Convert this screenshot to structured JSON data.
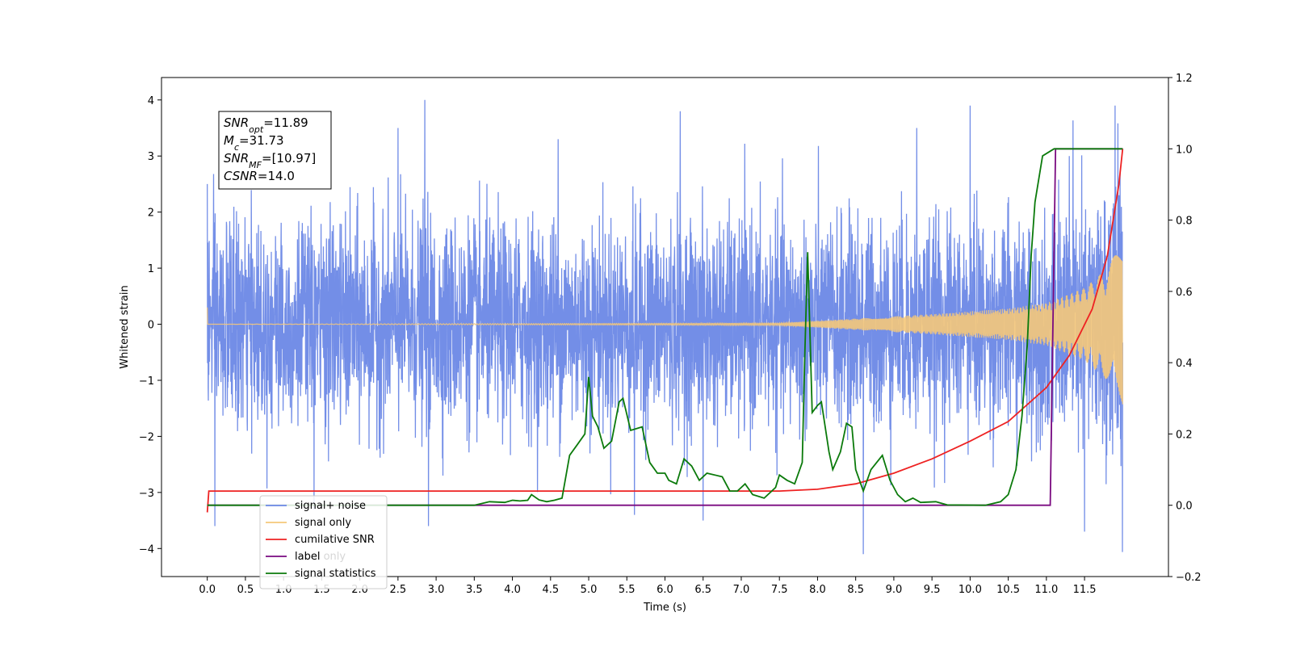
{
  "chart_data": {
    "type": "line",
    "xlabel": "Time (s)",
    "ylabel": "Whitened strain",
    "xlim": [
      -0.6,
      12.6
    ],
    "ylim": [
      -4.5,
      4.4
    ],
    "y2lim": [
      -0.2,
      1.2
    ],
    "x_ticks": [
      "0.0",
      "0.5",
      "1.0",
      "1.5",
      "2.0",
      "2.5",
      "3.0",
      "3.5",
      "4.0",
      "4.5",
      "5.0",
      "5.5",
      "6.0",
      "6.5",
      "7.0",
      "7.5",
      "8.0",
      "8.5",
      "9.0",
      "9.5",
      "10.0",
      "10.5",
      "11.0",
      "11.5"
    ],
    "y_ticks": [
      "−4",
      "−3",
      "−2",
      "−1",
      "0",
      "1",
      "2",
      "3",
      "4"
    ],
    "y2_ticks": [
      "−0.2",
      "0.0",
      "0.2",
      "0.4",
      "0.6",
      "0.8",
      "1.0",
      "1.2"
    ],
    "grid": false,
    "legend_position": "lower-left",
    "annotation": {
      "snr_opt": "=11.89",
      "mc": "=31.73",
      "snr_mf": "=[10.97]",
      "csnr": "=14.0"
    },
    "series": [
      {
        "name": "signal+ noise",
        "color": "#6b88e6",
        "axis": "left",
        "kind": "noise",
        "x_range": [
          0,
          12
        ],
        "envelope": [
          [
            0,
            2.2
          ],
          [
            11.0,
            2.2
          ],
          [
            12.0,
            2.6
          ]
        ],
        "spikes": [
          [
            0.0,
            2.5
          ],
          [
            0.1,
            -3.6
          ],
          [
            1.4,
            -3.3
          ],
          [
            2.5,
            3.5
          ],
          [
            2.85,
            4.0
          ],
          [
            2.9,
            -3.6
          ],
          [
            4.6,
            3.3
          ],
          [
            5.6,
            -3.4
          ],
          [
            6.2,
            3.8
          ],
          [
            6.5,
            -3.5
          ],
          [
            8.6,
            -4.1
          ],
          [
            9.3,
            3.5
          ],
          [
            10.0,
            3.9
          ],
          [
            11.3,
            3.0
          ],
          [
            11.5,
            -3.7
          ],
          [
            11.9,
            3.9
          ]
        ]
      },
      {
        "name": "signal only",
        "color": "#f5c87a",
        "axis": "left",
        "kind": "chirp",
        "x_range": [
          0,
          12
        ],
        "start_value": 0.3,
        "points": [
          [
            0.0,
            0.0
          ],
          [
            7.5,
            0.02
          ],
          [
            8.5,
            0.1
          ],
          [
            9.5,
            0.18
          ],
          [
            10.5,
            0.28
          ],
          [
            11.0,
            0.38
          ],
          [
            11.5,
            0.65
          ],
          [
            11.8,
            1.0
          ],
          [
            12.0,
            1.5
          ]
        ]
      },
      {
        "name": "cumilative SNR",
        "color": "#ee2222",
        "axis": "right",
        "points": [
          [
            0.0,
            -0.02
          ],
          [
            0.02,
            0.04
          ],
          [
            7.5,
            0.04
          ],
          [
            8.0,
            0.045
          ],
          [
            8.5,
            0.06
          ],
          [
            9.0,
            0.09
          ],
          [
            9.5,
            0.13
          ],
          [
            10.0,
            0.18
          ],
          [
            10.5,
            0.235
          ],
          [
            11.0,
            0.33
          ],
          [
            11.3,
            0.42
          ],
          [
            11.6,
            0.55
          ],
          [
            11.8,
            0.7
          ],
          [
            11.95,
            0.9
          ],
          [
            12.0,
            1.0
          ]
        ]
      },
      {
        "name": "label",
        "color": "#7a0a80",
        "axis": "right",
        "points": [
          [
            0.0,
            0.0
          ],
          [
            11.05,
            0.0
          ],
          [
            11.12,
            1.0
          ],
          [
            12.0,
            1.0
          ]
        ]
      },
      {
        "name": "signal statistics",
        "color": "#0b7a0b",
        "axis": "right",
        "points": [
          [
            0.0,
            0.0
          ],
          [
            3.5,
            0.0
          ],
          [
            3.7,
            0.01
          ],
          [
            3.9,
            0.008
          ],
          [
            4.0,
            0.014
          ],
          [
            4.1,
            0.012
          ],
          [
            4.2,
            0.014
          ],
          [
            4.25,
            0.03
          ],
          [
            4.35,
            0.015
          ],
          [
            4.45,
            0.01
          ],
          [
            4.55,
            0.014
          ],
          [
            4.65,
            0.02
          ],
          [
            4.75,
            0.14
          ],
          [
            4.85,
            0.17
          ],
          [
            4.95,
            0.2
          ],
          [
            5.0,
            0.36
          ],
          [
            5.05,
            0.25
          ],
          [
            5.12,
            0.22
          ],
          [
            5.2,
            0.16
          ],
          [
            5.3,
            0.18
          ],
          [
            5.4,
            0.29
          ],
          [
            5.45,
            0.3
          ],
          [
            5.55,
            0.21
          ],
          [
            5.7,
            0.22
          ],
          [
            5.8,
            0.12
          ],
          [
            5.9,
            0.09
          ],
          [
            6.0,
            0.09
          ],
          [
            6.05,
            0.07
          ],
          [
            6.15,
            0.06
          ],
          [
            6.25,
            0.13
          ],
          [
            6.35,
            0.11
          ],
          [
            6.45,
            0.07
          ],
          [
            6.55,
            0.09
          ],
          [
            6.75,
            0.08
          ],
          [
            6.85,
            0.04
          ],
          [
            6.95,
            0.04
          ],
          [
            7.05,
            0.06
          ],
          [
            7.15,
            0.03
          ],
          [
            7.3,
            0.02
          ],
          [
            7.45,
            0.05
          ],
          [
            7.5,
            0.085
          ],
          [
            7.6,
            0.07
          ],
          [
            7.7,
            0.06
          ],
          [
            7.8,
            0.12
          ],
          [
            7.83,
            0.4
          ],
          [
            7.87,
            0.71
          ],
          [
            7.93,
            0.26
          ],
          [
            8.0,
            0.28
          ],
          [
            8.05,
            0.29
          ],
          [
            8.15,
            0.15
          ],
          [
            8.2,
            0.1
          ],
          [
            8.3,
            0.15
          ],
          [
            8.38,
            0.23
          ],
          [
            8.45,
            0.22
          ],
          [
            8.5,
            0.1
          ],
          [
            8.6,
            0.04
          ],
          [
            8.7,
            0.1
          ],
          [
            8.85,
            0.14
          ],
          [
            8.95,
            0.07
          ],
          [
            9.05,
            0.03
          ],
          [
            9.15,
            0.01
          ],
          [
            9.25,
            0.02
          ],
          [
            9.35,
            0.008
          ],
          [
            9.55,
            0.01
          ],
          [
            9.7,
            0.001
          ],
          [
            10.2,
            0.0
          ],
          [
            10.4,
            0.01
          ],
          [
            10.5,
            0.03
          ],
          [
            10.6,
            0.1
          ],
          [
            10.68,
            0.25
          ],
          [
            10.75,
            0.45
          ],
          [
            10.8,
            0.7
          ],
          [
            10.85,
            0.85
          ],
          [
            10.95,
            0.98
          ],
          [
            11.1,
            1.0
          ],
          [
            12.0,
            1.0
          ]
        ]
      },
      {
        "name": "label only",
        "color": "#f5c87a",
        "axis": "right",
        "legend_only": true,
        "points": []
      }
    ],
    "legend": [
      {
        "label": "signal+ noise",
        "color": "#6b88e6"
      },
      {
        "label": "signal only",
        "color": "#f5c87a"
      },
      {
        "label": "cumilative SNR",
        "color": "#ee2222"
      },
      {
        "label": "label only",
        "color": "#7a0a80",
        "overlay": "label"
      },
      {
        "label": "signal statistics",
        "color": "#0b7a0b"
      }
    ]
  }
}
